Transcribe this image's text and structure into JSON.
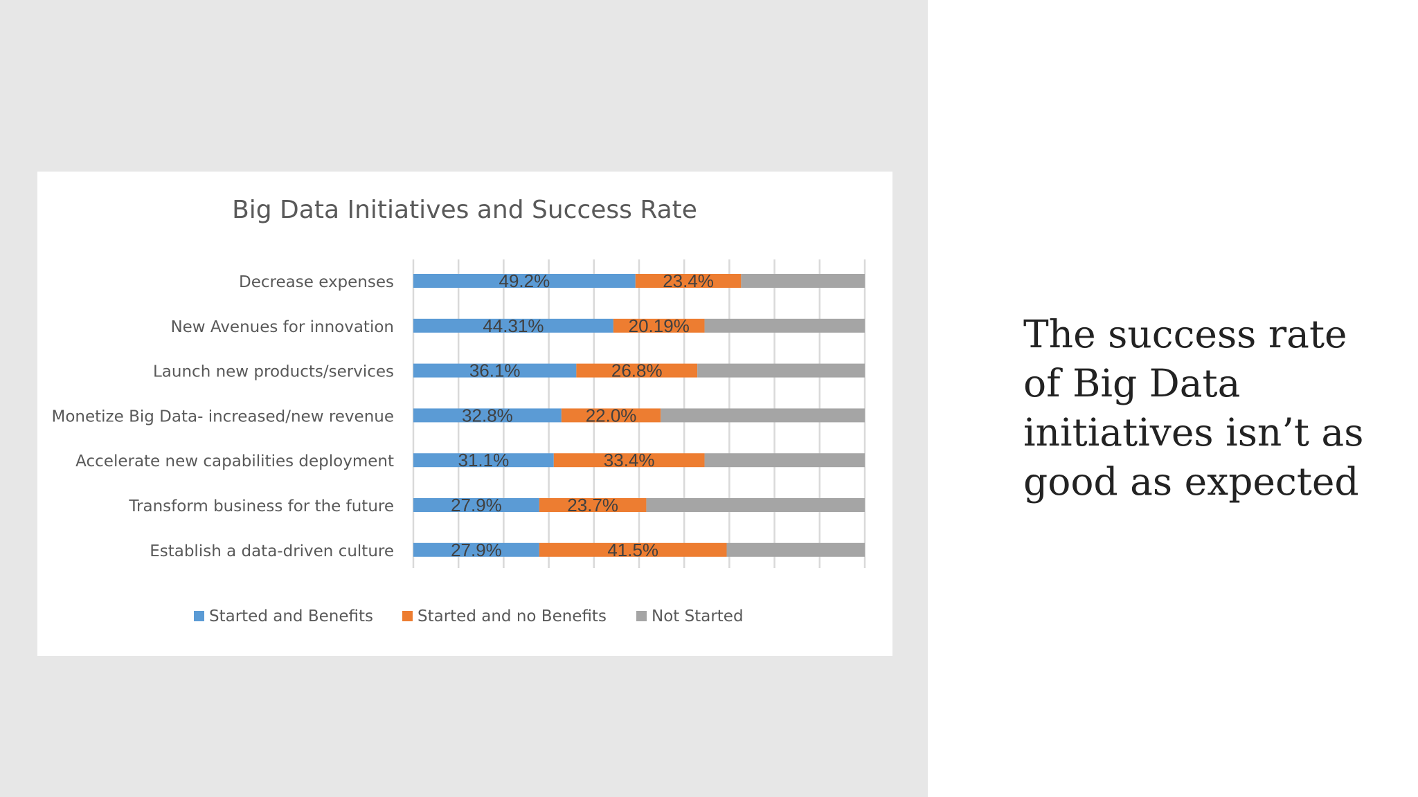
{
  "slide": {
    "caption": "The success rate of Big Data initiatives isn’t as good as expected"
  },
  "chart_data": {
    "type": "bar",
    "orientation": "horizontal",
    "stacked": true,
    "title": "Big Data Initiatives and Success Rate",
    "categories": [
      "Decrease expenses",
      "New Avenues for innovation",
      "Launch new products/services",
      "Monetize Big Data- increased/new revenue",
      "Accelerate new capabilities deployment",
      "Transform business for the future",
      "Establish  a data-driven culture"
    ],
    "series": [
      {
        "name": "Started and Benefits",
        "color": "#5b9bd5",
        "values": [
          49.2,
          44.31,
          36.1,
          32.8,
          31.1,
          27.9,
          27.9
        ],
        "labels": [
          "49.2%",
          "44.31%",
          "36.1%",
          "32.8%",
          "31.1%",
          "27.9%",
          "27.9%"
        ]
      },
      {
        "name": "Started and no Benefits",
        "color": "#ed7d31",
        "values": [
          23.4,
          20.19,
          26.8,
          22.0,
          33.4,
          23.7,
          41.5
        ],
        "labels": [
          "23.4%",
          "20.19%",
          "26.8%",
          "22.0%",
          "33.4%",
          "23.7%",
          "41.5%"
        ]
      },
      {
        "name": "Not Started",
        "color": "#a5a5a5",
        "values": [
          27.4,
          35.5,
          37.1,
          45.2,
          35.5,
          48.4,
          30.6
        ]
      }
    ],
    "xlim": [
      0,
      100
    ],
    "grid": true,
    "legend_position": "bottom"
  }
}
